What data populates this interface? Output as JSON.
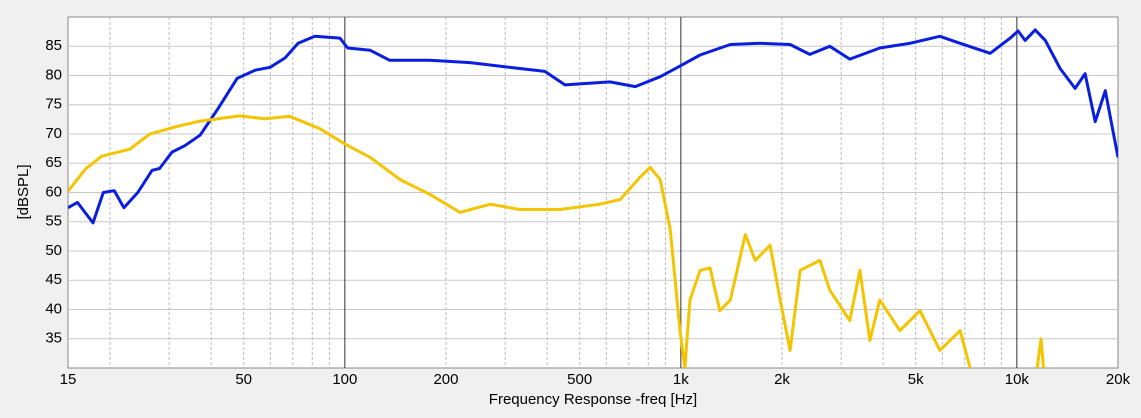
{
  "chart_data": {
    "type": "line",
    "xlabel": "Frequency Response -freq [Hz]",
    "ylabel": "[dBSPL]",
    "xscale": "log",
    "xlim": [
      15,
      20000
    ],
    "ylim": [
      30,
      90
    ],
    "xticks": [
      15,
      50,
      100,
      200,
      500,
      {
        "value": 1000,
        "label": "1k"
      },
      {
        "value": 2000,
        "label": "2k"
      },
      {
        "value": 5000,
        "label": "5k"
      },
      {
        "value": 10000,
        "label": "10k"
      },
      {
        "value": 20000,
        "label": "20k"
      }
    ],
    "x_minor_grid": [
      20,
      30,
      40,
      60,
      70,
      80,
      90,
      300,
      400,
      600,
      700,
      800,
      900,
      3000,
      4000,
      6000,
      7000,
      8000,
      9000
    ],
    "yticks": [
      35,
      40,
      45,
      50,
      55,
      60,
      65,
      70,
      75,
      80,
      85
    ],
    "grid": true,
    "series": [
      {
        "color": "#0a1ee0",
        "x": [
          15,
          16,
          17.8,
          19.1,
          20.6,
          22,
          24.2,
          26.7,
          28.1,
          30.6,
          33.4,
          37.1,
          41.9,
          47.8,
          54.1,
          59.9,
          66.4,
          72.6,
          81.4,
          96.7,
          102,
          119,
          136,
          179,
          236,
          332,
          394,
          452,
          615,
          732,
          868,
          994,
          1141,
          1403,
          1722,
          2114,
          2420,
          2776,
          3182,
          3909,
          4802,
          5901,
          6777,
          8329,
          9555,
          10083,
          10584,
          11343,
          12155,
          13450,
          14904,
          15965,
          17108,
          18338,
          20000
        ],
        "values": [
          57.4,
          58.3,
          54.8,
          60.0,
          60.3,
          57.4,
          60.0,
          63.8,
          64.1,
          66.9,
          68.0,
          69.8,
          74.3,
          79.5,
          80.9,
          81.4,
          83.0,
          85.5,
          86.7,
          86.4,
          84.7,
          84.3,
          82.6,
          82.6,
          82.2,
          81.2,
          80.7,
          78.4,
          78.9,
          78.1,
          79.8,
          81.6,
          83.5,
          85.3,
          85.5,
          85.3,
          83.6,
          85.0,
          82.8,
          84.7,
          85.5,
          86.7,
          85.5,
          83.8,
          86.4,
          87.6,
          86.0,
          87.8,
          86.0,
          81.2,
          77.8,
          80.3,
          72.1,
          77.4,
          66.0
        ]
      },
      {
        "color": "#f5c400",
        "x": [
          15,
          16.9,
          18.9,
          22.9,
          26.3,
          31.2,
          37.1,
          48.7,
          57.7,
          68.6,
          84.3,
          100,
          119,
          146,
          179,
          220,
          271,
          332,
          437,
          574,
          660,
          756,
          810,
          868,
          930,
          994,
          1028,
          1064,
          1141,
          1222,
          1306,
          1403,
          1555,
          1666,
          1844,
          1976,
          2114,
          2265,
          2594,
          2776,
          3182,
          3410,
          3653,
          3909,
          4487,
          5148,
          5901,
          6777,
          7259,
          9000,
          11500,
          11800,
          12000
        ],
        "values": [
          60.2,
          64.0,
          66.2,
          67.4,
          70.0,
          71.2,
          72.2,
          73.1,
          72.6,
          73.0,
          70.9,
          68.3,
          66.0,
          62.2,
          59.7,
          56.6,
          58.0,
          57.1,
          57.1,
          58.0,
          58.8,
          62.6,
          64.3,
          62.2,
          53.6,
          36.4,
          30,
          41.6,
          46.7,
          47.1,
          39.8,
          41.6,
          52.8,
          48.4,
          51.0,
          41.6,
          33.0,
          46.7,
          48.4,
          43.3,
          38.1,
          46.7,
          34.7,
          41.6,
          36.4,
          39.8,
          33.0,
          36.4,
          30,
          null,
          30,
          35,
          30
        ]
      }
    ]
  }
}
